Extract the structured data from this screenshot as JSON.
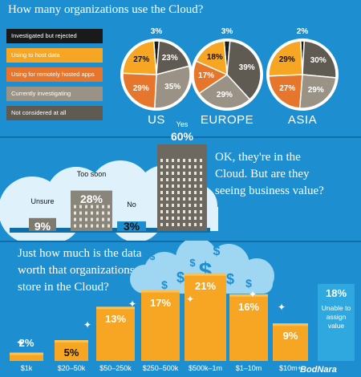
{
  "section1": {
    "title": "How many organizations use the Cloud?",
    "legend": [
      {
        "label": "Investigated but rejected",
        "color": "#1a1a1a"
      },
      {
        "label": "Using to host data",
        "color": "#f6a623"
      },
      {
        "label": "Using for remotely hosted apps",
        "color": "#e6762b"
      },
      {
        "label": "Currently investigating",
        "color": "#9a9284"
      },
      {
        "label": "Not considered at all",
        "color": "#5f5a52"
      }
    ]
  },
  "section2": {
    "question": "OK, they're in the Cloud. But are they seeing business value?"
  },
  "section3": {
    "title": "Just how much is the data worth that organizations store in the Cloud?",
    "unable_value": "18%",
    "unable_text": "Unable to assign value"
  },
  "watermark": "BodNara",
  "chart_data": [
    {
      "type": "pie",
      "title": "How many organizations use the Cloud?",
      "pies": [
        {
          "name": "US",
          "slices": [
            {
              "label": "Investigated but rejected",
              "value": 3
            },
            {
              "label": "Not considered at all",
              "value": 23
            },
            {
              "label": "Currently investigating",
              "value": 35
            },
            {
              "label": "Using for remotely hosted apps",
              "value": 29
            },
            {
              "label": "Using to host data",
              "value": 27
            }
          ]
        },
        {
          "name": "EUROPE",
          "slices": [
            {
              "label": "Investigated but rejected",
              "value": 3
            },
            {
              "label": "Not considered at all",
              "value": 39
            },
            {
              "label": "Currently investigating",
              "value": 29
            },
            {
              "label": "Using for remotely hosted apps",
              "value": 17
            },
            {
              "label": "Using to host data",
              "value": 18
            }
          ]
        },
        {
          "name": "ASIA",
          "slices": [
            {
              "label": "Investigated but rejected",
              "value": 2
            },
            {
              "label": "Not considered at all",
              "value": 30
            },
            {
              "label": "Currently investigating",
              "value": 29
            },
            {
              "label": "Using for remotely hosted apps",
              "value": 27
            },
            {
              "label": "Using to host data",
              "value": 29
            }
          ]
        }
      ]
    },
    {
      "type": "bar",
      "title": "OK, they're in the Cloud. But are they seeing business value?",
      "categories": [
        "Unsure",
        "Too soon",
        "No",
        "Yes"
      ],
      "values": [
        9,
        28,
        3,
        60
      ],
      "labels": [
        "9%",
        "28%",
        "3%",
        "60%"
      ]
    },
    {
      "type": "bar",
      "title": "Just how much is the data worth that organizations store in the Cloud?",
      "categories": [
        "$1k",
        "$20–50k",
        "$50–250k",
        "$250–500k",
        "$500k–1m",
        "$1–10m",
        "$10m+"
      ],
      "values": [
        2,
        5,
        13,
        17,
        21,
        16,
        9
      ],
      "labels": [
        "2%",
        "5%",
        "13%",
        "17%",
        "21%",
        "16%",
        "9%"
      ]
    }
  ]
}
